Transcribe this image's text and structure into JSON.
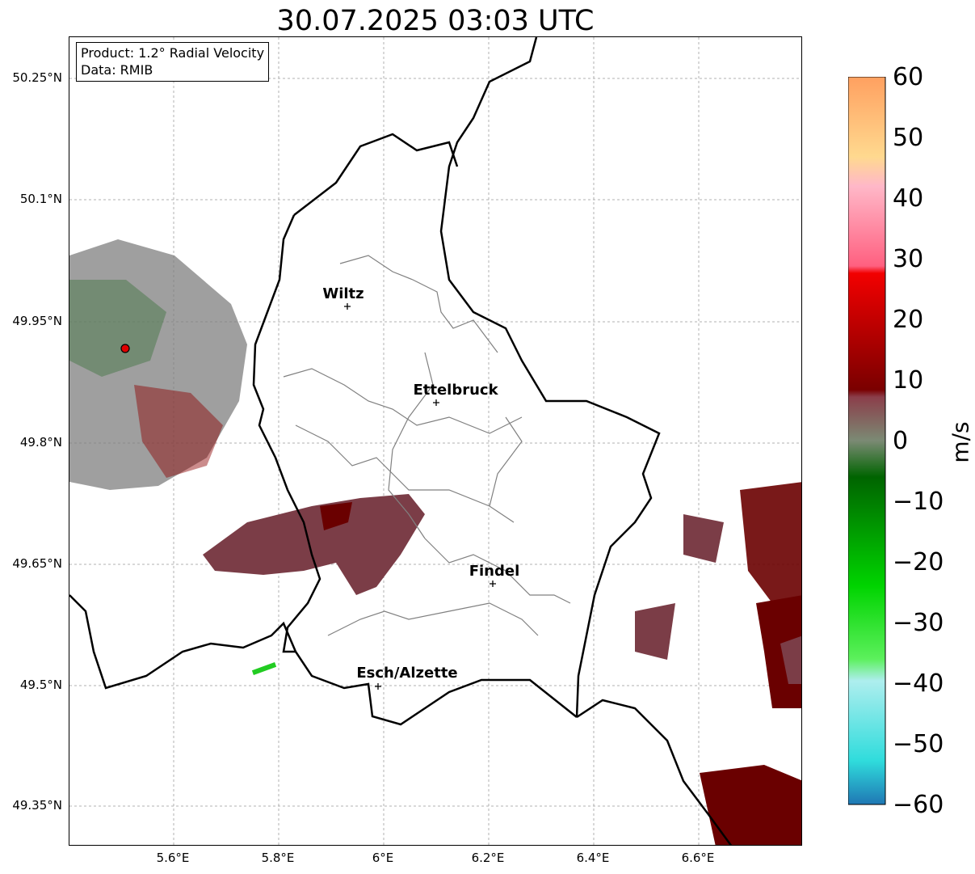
{
  "title": "30.07.2025 03:03 UTC",
  "info": {
    "product": "Product: 1.2° Radial Velocity",
    "source": "Data: RMIB"
  },
  "lat_ticks": [
    "50.25°N",
    "50.1°N",
    "49.95°N",
    "49.8°N",
    "49.65°N",
    "49.5°N",
    "49.35°N"
  ],
  "lon_ticks": [
    "5.6°E",
    "5.8°E",
    "6°E",
    "6.2°E",
    "6.4°E",
    "6.6°E"
  ],
  "cities": [
    {
      "name": "Wiltz"
    },
    {
      "name": "Ettelbruck"
    },
    {
      "name": "Findel"
    },
    {
      "name": "Esch/Alzette"
    }
  ],
  "colorbar": {
    "unit": "m/s",
    "ticks": [
      "60",
      "50",
      "40",
      "30",
      "20",
      "10",
      "0",
      "−10",
      "−20",
      "−30",
      "−40",
      "−50",
      "−60"
    ],
    "colors": [
      "#1f77b4",
      "#2fdcdc",
      "#aeeeee",
      "#5cf05c",
      "#00d400",
      "#006400",
      "#7b8a74",
      "#8b3e4a",
      "#7a0000",
      "#f20000",
      "#ff6080",
      "#ffb8c8",
      "#ffd98f",
      "#ffa060"
    ]
  }
}
